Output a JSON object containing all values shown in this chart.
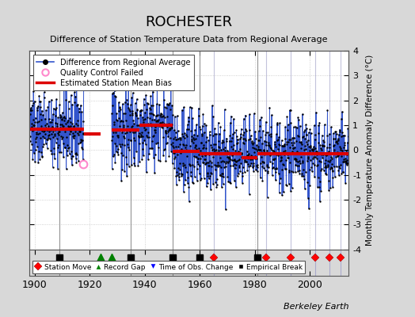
{
  "title": "ROCHESTER",
  "subtitle": "Difference of Station Temperature Data from Regional Average",
  "ylabel": "Monthly Temperature Anomaly Difference (°C)",
  "xlabel_years": [
    1900,
    1920,
    1940,
    1960,
    1980,
    2000
  ],
  "ylim": [
    -4,
    4
  ],
  "xlim": [
    1898,
    2014
  ],
  "background_color": "#d8d8d8",
  "plot_bg_color": "#ffffff",
  "grid_color": "#aaaaaa",
  "line_color": "#3355cc",
  "dot_color": "#000000",
  "bias_color": "#dd0000",
  "bias_linewidth": 3.0,
  "watermark": "Berkeley Earth",
  "station_moves": [
    1965,
    1984,
    1993,
    2002,
    2007,
    2011
  ],
  "record_gaps": [
    1924,
    1928
  ],
  "tobs_changes": [],
  "empirical_breaks": [
    1909,
    1935,
    1950,
    1960,
    1981
  ],
  "bias_segments": [
    {
      "start": 1898,
      "end": 1918,
      "value": 0.85
    },
    {
      "start": 1918,
      "end": 1924,
      "value": 0.65
    },
    {
      "start": 1928,
      "end": 1938,
      "value": 0.8
    },
    {
      "start": 1938,
      "end": 1950,
      "value": 1.0
    },
    {
      "start": 1950,
      "end": 1960,
      "value": -0.05
    },
    {
      "start": 1960,
      "end": 1975,
      "value": -0.15
    },
    {
      "start": 1975,
      "end": 1981,
      "value": -0.3
    },
    {
      "start": 1981,
      "end": 2014,
      "value": -0.15
    }
  ],
  "gap_periods": [
    {
      "start": 1918.0,
      "end": 1928.0
    }
  ],
  "vlines_gray": [
    1909,
    1935,
    1950,
    1960,
    1981
  ],
  "vlines_blue": [
    1965,
    1984,
    1993,
    2002,
    2007,
    2011
  ],
  "noise_scale": 0.75,
  "seed": 137
}
